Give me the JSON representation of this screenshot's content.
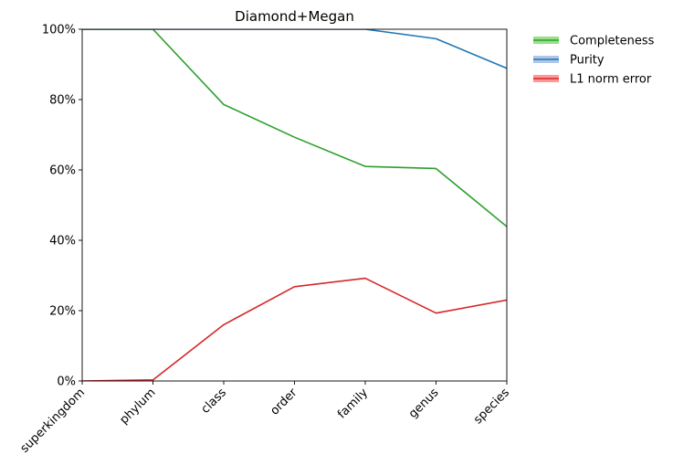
{
  "chart_data": {
    "type": "line",
    "title": "Diamond+Megan",
    "xlabel": "",
    "ylabel": "",
    "categories": [
      "superkingdom",
      "phylum",
      "class",
      "order",
      "family",
      "genus",
      "species"
    ],
    "ylim": [
      0,
      100
    ],
    "yticks": [
      0,
      20,
      40,
      60,
      80,
      100
    ],
    "ytick_labels": [
      "0%",
      "20%",
      "40%",
      "60%",
      "80%",
      "100%"
    ],
    "grid": false,
    "legend_position": "outside-top-right",
    "series": [
      {
        "name": "Completeness",
        "color": "#2ca02c",
        "band_color": "#98df8a",
        "values": [
          100,
          100,
          78.6,
          69.3,
          61.0,
          60.4,
          43.9
        ]
      },
      {
        "name": "Purity",
        "color": "#1f77b4",
        "band_color": "#aec7e8",
        "values": [
          100,
          100,
          100,
          100,
          100,
          97.3,
          88.9
        ]
      },
      {
        "name": "L1 norm error",
        "color": "#d62728",
        "band_color": "#ff9896",
        "values": [
          0,
          0.3,
          16.0,
          26.8,
          29.2,
          19.3,
          23.0
        ]
      }
    ]
  }
}
